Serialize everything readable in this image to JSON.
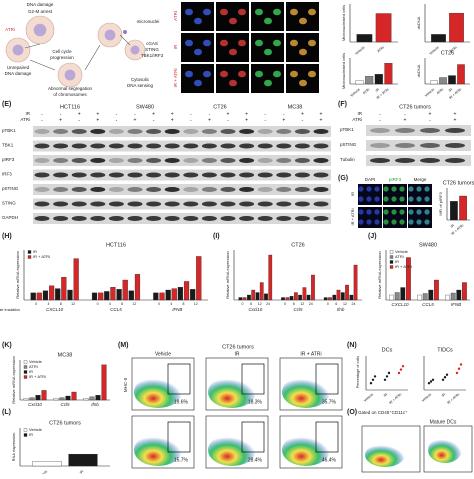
{
  "overview": {
    "texts": [
      "DNA damage",
      "G2-M arrest",
      "ATRi",
      "Unrepaired",
      "DNA damage",
      "Cell cycle",
      "progression",
      "Abnormal segregation",
      "of chromosomes",
      "micronuclei",
      "cGAS",
      "STING",
      "TBK1/IRF3",
      "Cytosolic",
      "DNA sensing"
    ]
  },
  "micro": {
    "rows": [
      "ATRi",
      "IR",
      "IR + ATRi"
    ]
  },
  "labels": {
    "E": "(E)",
    "F": "(F)",
    "G": "(G)",
    "H": "(H)",
    "I": "(I)",
    "J": "(J)",
    "K": "(K)",
    "L": "(L)",
    "M": "(M)",
    "N": "(N)",
    "O": "(O)"
  },
  "blots_e": {
    "cell_lines": [
      "HCT116",
      "SW480",
      "CT26",
      "MC38"
    ],
    "conditions": [
      "IR",
      "ATRi"
    ],
    "signs": [
      "-",
      "+"
    ],
    "proteins": [
      "pTBK1",
      "TBK1",
      "pIRF3",
      "IRF3",
      "pSTING",
      "STING",
      "GAPDH"
    ]
  },
  "blots_f": {
    "title": "CT26 tumors",
    "conditions": [
      "IR",
      "ATRi"
    ],
    "proteins": [
      "pTBK1",
      "pSTING",
      "Tubulin"
    ]
  },
  "panel_g": {
    "stains": [
      "DAPI",
      "pIRF3",
      "Merge"
    ],
    "rows": [
      "IR",
      "IR + ATRi"
    ]
  },
  "bar_charts": [
    {
      "ylabel": "Micronucleated cells",
      "ylim": [
        0,
        40
      ],
      "series": [
        {
          "name": "Vehicle",
          "color": "#1a1a1a",
          "values": [
            8
          ]
        },
        {
          "name": "ATRi",
          "color": "#d62728",
          "values": [
            30
          ]
        }
      ]
    },
    {
      "ylabel": "dsDNA",
      "ylim": [
        0,
        5
      ],
      "series": [
        {
          "name": "Vehicle",
          "color": "#1a1a1a",
          "values": [
            1
          ]
        },
        {
          "name": "ATRi",
          "color": "#d62728",
          "values": [
            3.8
          ]
        }
      ]
    },
    {
      "ylabel": "Micronucleated cells",
      "ylim": [
        0,
        40
      ],
      "series": [
        {
          "name": "Vehicle",
          "color": "#ffffff",
          "values": [
            5
          ]
        },
        {
          "name": "ATRi",
          "color": "#888888",
          "values": [
            12
          ]
        },
        {
          "name": "IR",
          "color": "#1a1a1a",
          "values": [
            15
          ]
        },
        {
          "name": "IR + ATRi",
          "color": "#d62728",
          "values": [
            32
          ]
        }
      ]
    },
    {
      "title": "CT26",
      "ylabel": "dsDNA",
      "ylim": [
        0,
        4
      ],
      "series": [
        {
          "name": "Vehicle",
          "color": "#ffffff",
          "values": [
            0.5
          ]
        },
        {
          "name": "ATRi",
          "color": "#888888",
          "values": [
            1
          ]
        },
        {
          "name": "IR",
          "color": "#1a1a1a",
          "values": [
            1.3
          ]
        },
        {
          "name": "IR + ATRi",
          "color": "#d62728",
          "values": [
            3
          ]
        }
      ]
    },
    {
      "title": "CT26 tumors",
      "ylabel": "MFI of pIRF3",
      "ylim": [
        0,
        60
      ],
      "series": [
        {
          "name": "IR",
          "color": "#1a1a1a",
          "values": [
            35
          ]
        },
        {
          "name": "IR + ATRi",
          "color": "#d62728",
          "values": [
            45
          ]
        }
      ]
    },
    {
      "title": "HCT116",
      "ylabel": "Relative mRNA expression",
      "xlabel": "Time after irradiation",
      "ylim": [
        0,
        7
      ],
      "groups": [
        "CXCL10",
        "CCL5",
        "IFNB"
      ],
      "times": [
        "0",
        "4",
        "8",
        "12"
      ],
      "legend": true,
      "series": [
        {
          "name": "IR",
          "color": "#1a1a1a",
          "values": [
            1,
            1.3,
            1.6,
            1.4,
            1,
            1.2,
            1.5,
            1.3,
            1,
            1.4,
            1.8,
            1.5
          ]
        },
        {
          "name": "IR + ATRi",
          "color": "#d62728",
          "values": [
            1,
            2.0,
            3.2,
            5.8,
            1,
            1.8,
            2.8,
            3.6,
            1,
            1.6,
            2.6,
            6.1
          ]
        }
      ]
    },
    {
      "title": "CT26",
      "ylabel": "Relative mRNA expression",
      "ylim": [
        0,
        20
      ],
      "groups": [
        "Cxcl10",
        "Ccl5",
        "Ifnb"
      ],
      "times": [
        "0",
        "6",
        "12",
        "24"
      ],
      "series": [
        {
          "name": "IR",
          "color": "#1a1a1a",
          "values": [
            1,
            2,
            3,
            2.5,
            1,
            1.5,
            2,
            2,
            1,
            2,
            3,
            2
          ]
        },
        {
          "name": "IR + ATRi",
          "color": "#d62728",
          "values": [
            1,
            4,
            7,
            18,
            1,
            3,
            5,
            10,
            1,
            4,
            6,
            14
          ]
        }
      ]
    },
    {
      "title": "SW480",
      "ylabel": "Relative mRNA expression",
      "ylim": [
        0,
        10
      ],
      "groups": [
        "CXCL10",
        "CCL5",
        "IFNB"
      ],
      "legend": true,
      "series": [
        {
          "name": "Vehicle",
          "color": "#ffffff",
          "values": [
            1,
            1,
            1
          ]
        },
        {
          "name": "ATRi",
          "color": "#888888",
          "values": [
            1.5,
            1.3,
            1.4
          ]
        },
        {
          "name": "IR",
          "color": "#1a1a1a",
          "values": [
            2.5,
            2,
            2
          ]
        },
        {
          "name": "IR + ATRi",
          "color": "#d62728",
          "values": [
            8.5,
            4,
            3.5
          ]
        }
      ]
    },
    {
      "title": "MC38",
      "ylabel": "Relative mRNA expression",
      "ylim": [
        0,
        25
      ],
      "groups": [
        "Cxcl10",
        "Ccl5",
        "Ifnb"
      ],
      "legend": true,
      "series": [
        {
          "name": "Vehicle",
          "color": "#ffffff",
          "values": [
            1,
            1,
            1
          ]
        },
        {
          "name": "ATRi",
          "color": "#888888",
          "values": [
            1.5,
            1.5,
            2
          ]
        },
        {
          "name": "IR",
          "color": "#1a1a1a",
          "values": [
            3,
            2.5,
            3
          ]
        },
        {
          "name": "IR + ATRi",
          "color": "#d62728",
          "values": [
            6,
            5,
            22
          ]
        }
      ]
    },
    {
      "title": "CT26 tumors",
      "ylabel": "RNA expression",
      "ylim": [
        0,
        8
      ],
      "legend": true,
      "series": [
        {
          "name": "Vehicle",
          "color": "#ffffff",
          "values": [
            1
          ]
        },
        {
          "name": "IR",
          "color": "#1a1a1a",
          "values": [
            2.5
          ]
        }
      ]
    }
  ],
  "panel_m": {
    "title": "CT26 tumors",
    "columns": [
      "Vehicle",
      "IR",
      "IR + ATRi"
    ],
    "ylabel": "MHC-II",
    "percentages": [
      "19.6%",
      "18.3%",
      "35.7%",
      "15.7%",
      "28.4%",
      "46.4%"
    ]
  },
  "panel_n": {
    "ylabel": "Percentage of cells",
    "conditions": [
      "Vehicle",
      "IR",
      "IR + ATRi"
    ],
    "charts": [
      {
        "title": "DCs",
        "ylim": [
          0,
          10
        ],
        "values": [
          [
            2,
            3,
            4
          ],
          [
            3,
            4,
            5
          ],
          [
            5,
            6,
            7
          ]
        ]
      },
      {
        "title": "TIDCs",
        "ylim": [
          0,
          40
        ],
        "values": [
          [
            8,
            10,
            12
          ],
          [
            12,
            15,
            18
          ],
          [
            20,
            25,
            30
          ]
        ]
      }
    ]
  },
  "panel_o": {
    "gate": "Gated on CD45⁺CD11c⁺",
    "title": "Mature DCs"
  }
}
